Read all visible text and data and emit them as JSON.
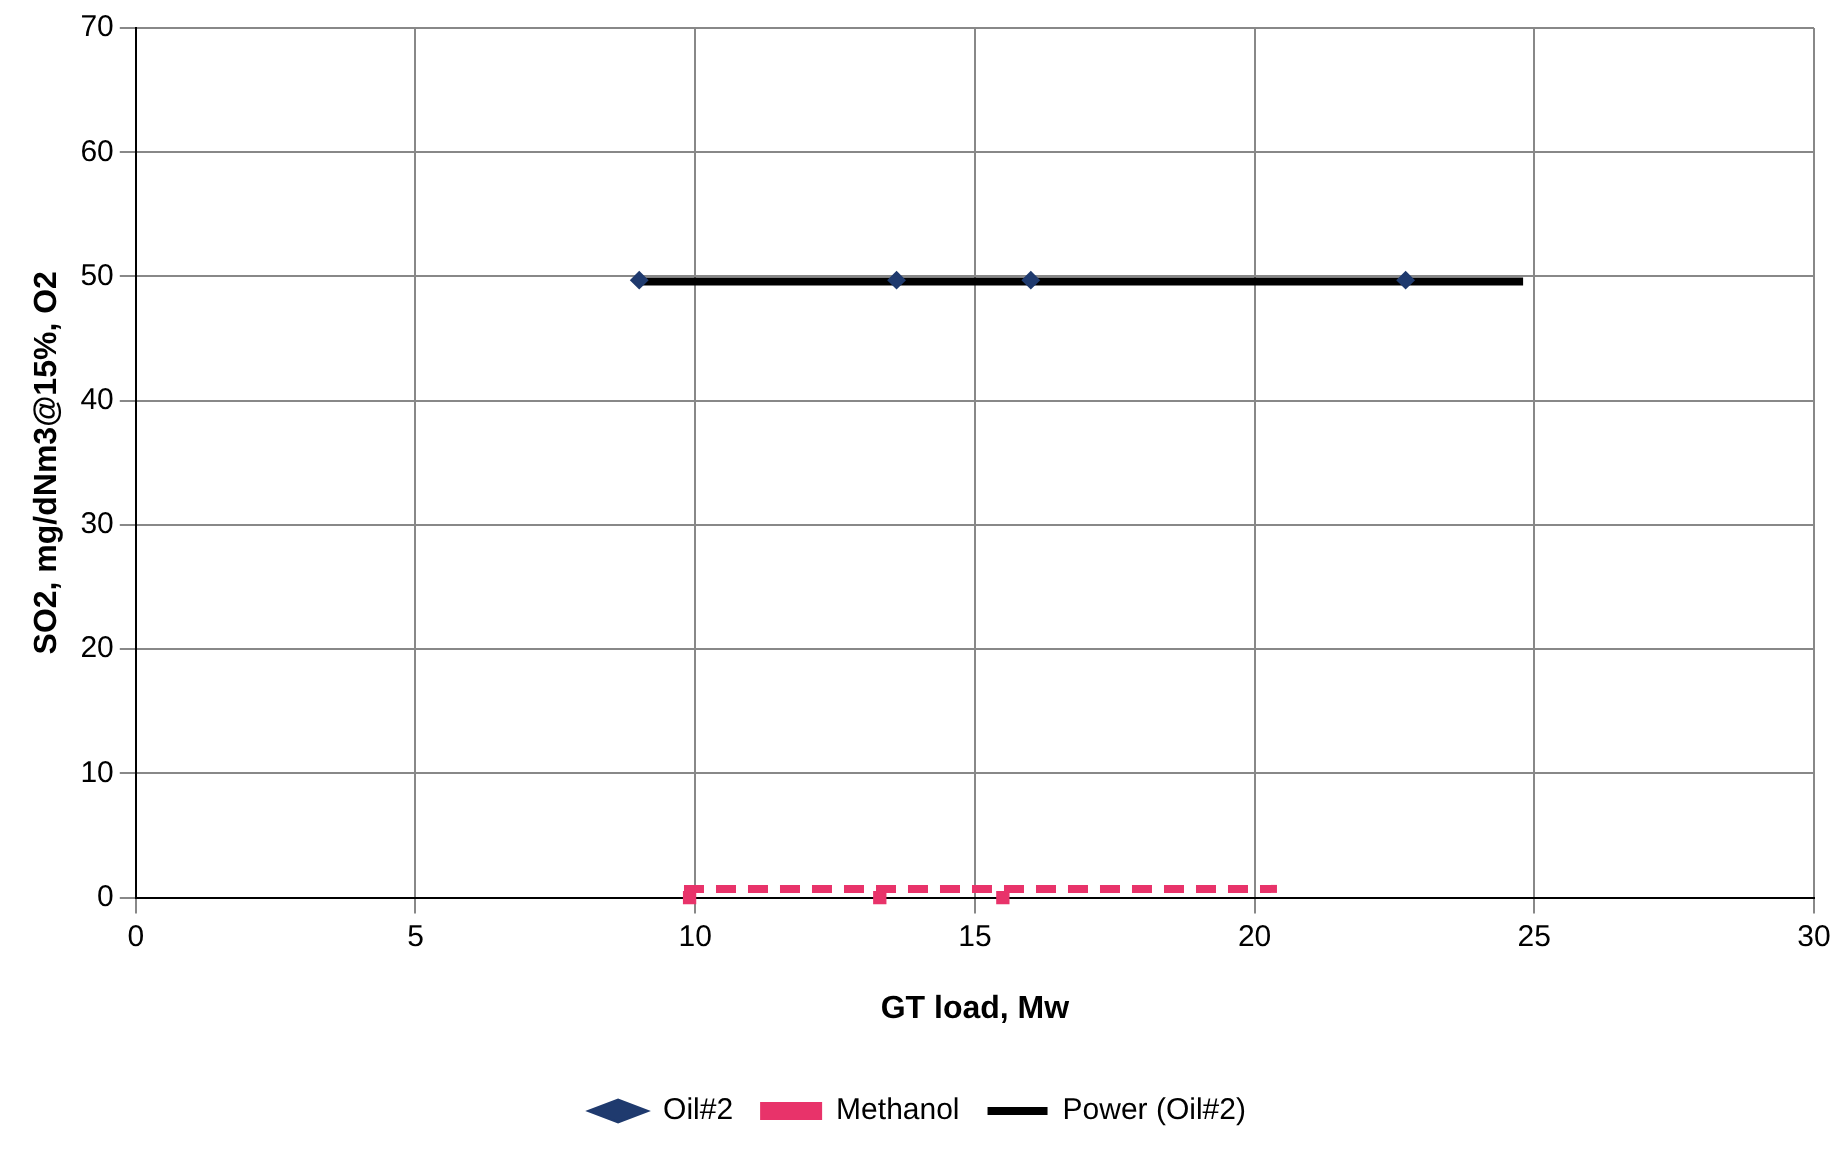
{
  "chart_data": {
    "type": "scatter",
    "xlabel": "GT load, Mw",
    "ylabel": "SO2, mg/dNm3@15%, O2",
    "xlim": [
      0,
      30
    ],
    "xticks": [
      0,
      5,
      10,
      15,
      20,
      25,
      30
    ],
    "ylim": [
      0,
      70
    ],
    "yticks": [
      0,
      10,
      20,
      30,
      40,
      50,
      60,
      70
    ],
    "grid": true,
    "legend": "bottom",
    "series": [
      {
        "name": "Oil#2",
        "marker": "diamond",
        "color": "#1f3a6e",
        "x": [
          9,
          13.6,
          16,
          22.7
        ],
        "values": [
          49.7,
          49.7,
          49.7,
          49.7
        ]
      },
      {
        "name": "Methanol",
        "marker": "square",
        "color": "#e8336a",
        "x": [
          9.9,
          13.3,
          15.5
        ],
        "values": [
          0,
          0,
          0
        ]
      },
      {
        "name": "Power (Oil#2)",
        "type": "line",
        "marker": "none",
        "line_style": "solid",
        "color": "#000000",
        "x": [
          9,
          24.8
        ],
        "values": [
          49.6,
          49.6
        ]
      },
      {
        "type": "line",
        "marker": "none",
        "line_style": "dashed",
        "color": "#e8336a",
        "x": [
          9.8,
          20.4
        ],
        "values": [
          0.7,
          0.7
        ]
      }
    ]
  }
}
